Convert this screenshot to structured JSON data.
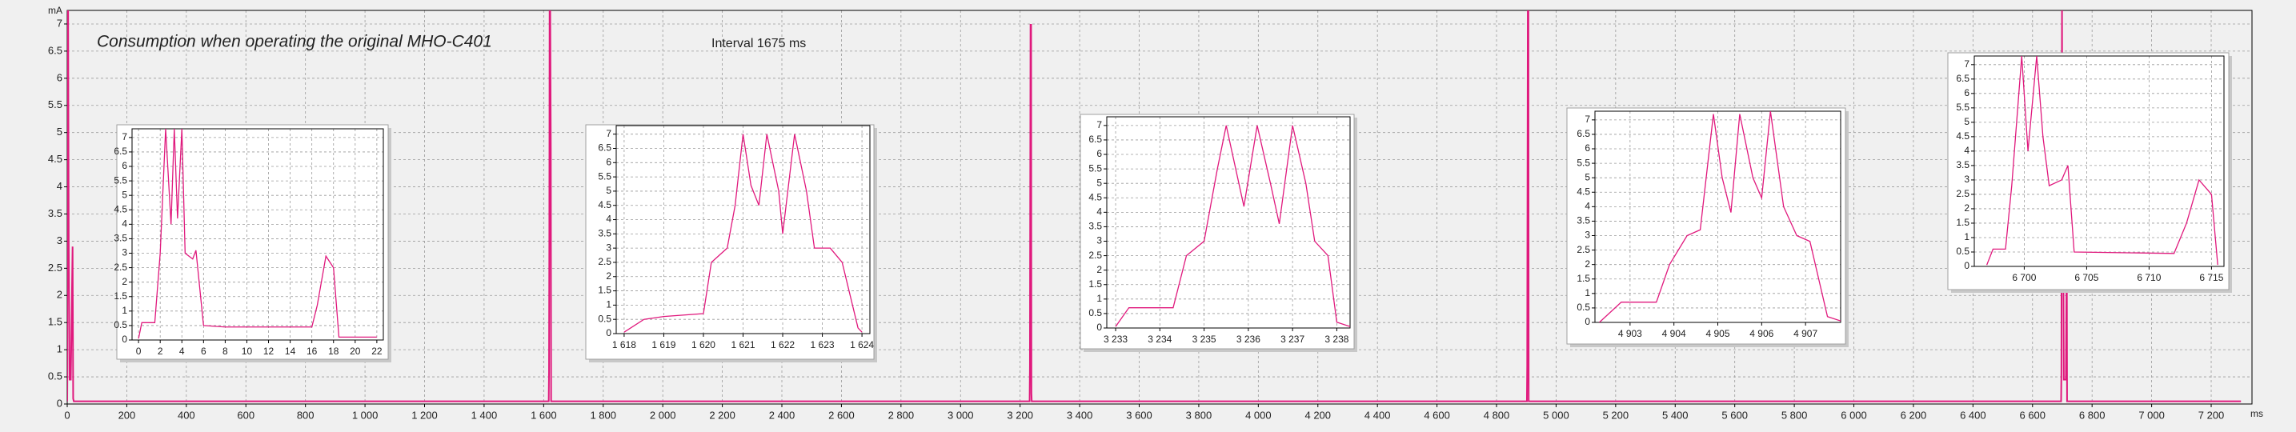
{
  "chart_data": [
    {
      "type": "line",
      "title": "Consumption when operating the original MHO-C401",
      "annotation": "Interval 1675 ms",
      "y_label": "mA",
      "x_label": "ms",
      "grid": true,
      "xlim": [
        0,
        7337
      ],
      "ylim": [
        0,
        7.25
      ],
      "xticks": [
        0,
        200,
        400,
        600,
        800,
        {
          "value": 1000,
          "label": "1 000"
        },
        {
          "value": 1200,
          "label": "1 200"
        },
        {
          "value": 1400,
          "label": "1 400"
        },
        {
          "value": 1600,
          "label": "1 600"
        },
        {
          "value": 1800,
          "label": "1 800"
        },
        {
          "value": 2000,
          "label": "2 000"
        },
        {
          "value": 2200,
          "label": "2 200"
        },
        {
          "value": 2400,
          "label": "2 400"
        },
        {
          "value": 2600,
          "label": "2 600"
        },
        {
          "value": 2800,
          "label": "2 800"
        },
        {
          "value": 3000,
          "label": "3 000"
        },
        {
          "value": 3200,
          "label": "3 200"
        },
        {
          "value": 3400,
          "label": "3 400"
        },
        {
          "value": 3600,
          "label": "3 600"
        },
        {
          "value": 3800,
          "label": "3 800"
        },
        {
          "value": 4000,
          "label": "4 000"
        },
        {
          "value": 4200,
          "label": "4 200"
        },
        {
          "value": 4400,
          "label": "4 400"
        },
        {
          "value": 4600,
          "label": "4 600"
        },
        {
          "value": 4800,
          "label": "4 800"
        },
        {
          "value": 5000,
          "label": "5 000"
        },
        {
          "value": 5200,
          "label": "5 200"
        },
        {
          "value": 5400,
          "label": "5 400"
        },
        {
          "value": 5600,
          "label": "5 600"
        },
        {
          "value": 5800,
          "label": "5 800"
        },
        {
          "value": 6000,
          "label": "6 000"
        },
        {
          "value": 6200,
          "label": "6 200"
        },
        {
          "value": 6400,
          "label": "6 400"
        },
        {
          "value": 6600,
          "label": "6 600"
        },
        {
          "value": 6800,
          "label": "6 800"
        },
        {
          "value": 7000,
          "label": "7 000"
        },
        {
          "value": 7200,
          "label": "7 200"
        }
      ],
      "yticks": [
        0,
        0.5,
        1,
        1.5,
        2,
        2.5,
        3,
        3.5,
        4,
        4.5,
        5,
        5.5,
        6,
        6.5,
        7
      ],
      "series": [
        {
          "color": "#e0197d",
          "x": [
            0,
            0.5,
            1,
            2,
            3,
            5,
            8,
            12,
            18,
            20,
            22,
            30,
            1617,
            1618,
            1619,
            1620,
            1622,
            1624,
            1625,
            3232,
            3233,
            3235,
            3236,
            3237,
            3238,
            3239,
            4902,
            4903,
            4905,
            4906,
            4907,
            4908,
            6696,
            6697,
            6699,
            6700,
            6703,
            6705,
            6712,
            6715,
            6716,
            7300
          ],
          "values": [
            0.05,
            0.6,
            7.3,
            4,
            7.3,
            3,
            0.45,
            0.45,
            2.9,
            0.1,
            0.05,
            0.05,
            0.05,
            0.6,
            3,
            7.3,
            7.3,
            4.7,
            0.05,
            0.05,
            0.7,
            7,
            4.2,
            7,
            0.2,
            0.05,
            0.05,
            0.7,
            7.3,
            4.3,
            7.3,
            0.05,
            0.05,
            0.6,
            7.3,
            4,
            3.5,
            0.45,
            0.45,
            3,
            0.05,
            0.05
          ]
        }
      ]
    },
    {
      "type": "line",
      "grid": true,
      "xlim": [
        -0.6,
        22.6
      ],
      "ylim": [
        0,
        7.3
      ],
      "xticks": [
        0,
        2,
        4,
        6,
        8,
        10,
        12,
        14,
        16,
        18,
        20,
        22
      ],
      "yticks": [
        0,
        0.5,
        1,
        1.5,
        2,
        2.5,
        3,
        3.5,
        4,
        4.5,
        5,
        5.5,
        6,
        6.5,
        7
      ],
      "series": [
        {
          "color": "#e0197d",
          "x": [
            0,
            0.3,
            1.5,
            2,
            2.5,
            3,
            3.3,
            3.6,
            4,
            4.3,
            5,
            5.3,
            6,
            8,
            16,
            16.5,
            17.3,
            18,
            18.5,
            22
          ],
          "values": [
            0.05,
            0.6,
            0.6,
            3,
            7.3,
            4,
            7.3,
            4.2,
            7.3,
            3,
            2.8,
            3.1,
            0.5,
            0.45,
            0.45,
            1.2,
            2.9,
            2.5,
            0.1,
            0.1
          ]
        }
      ]
    },
    {
      "type": "line",
      "grid": true,
      "xlim": [
        1617.8,
        1624.2
      ],
      "ylim": [
        0,
        7.3
      ],
      "xticks": [
        {
          "value": 1618,
          "label": "1 618"
        },
        {
          "value": 1619,
          "label": "1 619"
        },
        {
          "value": 1620,
          "label": "1 620"
        },
        {
          "value": 1621,
          "label": "1 621"
        },
        {
          "value": 1622,
          "label": "1 622"
        },
        {
          "value": 1623,
          "label": "1 623"
        },
        {
          "value": 1624,
          "label": "1 624"
        }
      ],
      "yticks": [
        0,
        0.5,
        1,
        1.5,
        2,
        2.5,
        3,
        3.5,
        4,
        4.5,
        5,
        5.5,
        6,
        6.5,
        7
      ],
      "series": [
        {
          "color": "#e0197d",
          "x": [
            1618,
            1618.5,
            1619,
            1620,
            1620.2,
            1620.6,
            1620.8,
            1621,
            1621.2,
            1621.4,
            1621.6,
            1621.9,
            1622,
            1622.3,
            1622.6,
            1622.8,
            1623.2,
            1623.5,
            1623.9,
            1624
          ],
          "values": [
            0.05,
            0.5,
            0.6,
            0.7,
            2.5,
            3,
            4.5,
            7,
            5.2,
            4.5,
            7,
            5,
            3.5,
            7,
            5,
            3,
            3,
            2.5,
            0.2,
            0.05
          ]
        }
      ]
    },
    {
      "type": "line",
      "grid": true,
      "xlim": [
        3232.8,
        3238.3
      ],
      "ylim": [
        0,
        7.3
      ],
      "xticks": [
        {
          "value": 3233,
          "label": "3 233"
        },
        {
          "value": 3234,
          "label": "3 234"
        },
        {
          "value": 3235,
          "label": "3 235"
        },
        {
          "value": 3236,
          "label": "3 236"
        },
        {
          "value": 3237,
          "label": "3 237"
        },
        {
          "value": 3238,
          "label": "3 238"
        }
      ],
      "yticks": [
        0,
        0.5,
        1,
        1.5,
        2,
        2.5,
        3,
        3.5,
        4,
        4.5,
        5,
        5.5,
        6,
        6.5,
        7
      ],
      "series": [
        {
          "color": "#e0197d",
          "x": [
            3233,
            3233.3,
            3234.3,
            3234.6,
            3235,
            3235.3,
            3235.5,
            3235.9,
            3236.2,
            3236.5,
            3236.7,
            3237,
            3237.3,
            3237.5,
            3237.8,
            3238,
            3238.3
          ],
          "values": [
            0.05,
            0.7,
            0.7,
            2.5,
            3,
            5.5,
            7,
            4.2,
            7,
            5,
            3.6,
            7,
            5,
            3,
            2.5,
            0.2,
            0.05
          ]
        }
      ]
    },
    {
      "type": "line",
      "grid": true,
      "xlim": [
        4902.2,
        4907.8
      ],
      "ylim": [
        0,
        7.3
      ],
      "xticks": [
        {
          "value": 4903,
          "label": "4 903"
        },
        {
          "value": 4904,
          "label": "4 904"
        },
        {
          "value": 4905,
          "label": "4 905"
        },
        {
          "value": 4906,
          "label": "4 906"
        },
        {
          "value": 4907,
          "label": "4 907"
        }
      ],
      "yticks": [
        0,
        0.5,
        1,
        1.5,
        2,
        2.5,
        3,
        3.5,
        4,
        4.5,
        5,
        5.5,
        6,
        6.5,
        7
      ],
      "series": [
        {
          "color": "#e0197d",
          "x": [
            4902.3,
            4902.8,
            4903.6,
            4903.9,
            4904.3,
            4904.6,
            4904.9,
            4905.1,
            4905.3,
            4905.5,
            4905.8,
            4906,
            4906.2,
            4906.5,
            4906.8,
            4907.1,
            4907.5,
            4907.8
          ],
          "values": [
            0,
            0.7,
            0.7,
            2,
            3,
            3.2,
            7.2,
            5,
            3.8,
            7.2,
            5,
            4.3,
            7.3,
            4,
            3,
            2.8,
            0.2,
            0.05
          ]
        }
      ]
    },
    {
      "type": "line",
      "grid": true,
      "xlim": [
        6696,
        6716
      ],
      "ylim": [
        0,
        7.3
      ],
      "xticks": [
        {
          "value": 6700,
          "label": "6 700"
        },
        {
          "value": 6705,
          "label": "6 705"
        },
        {
          "value": 6710,
          "label": "6 710"
        },
        {
          "value": 6715,
          "label": "6 715"
        }
      ],
      "yticks": [
        0,
        0.5,
        1,
        1.5,
        2,
        2.5,
        3,
        3.5,
        4,
        4.5,
        5,
        5.5,
        6,
        6.5,
        7
      ],
      "series": [
        {
          "color": "#e0197d",
          "x": [
            6697,
            6697.5,
            6698.5,
            6699,
            6699.8,
            6700.3,
            6701,
            6701.5,
            6702,
            6703,
            6703.5,
            6704,
            6712,
            6713,
            6714,
            6715,
            6715.5
          ],
          "values": [
            0.05,
            0.6,
            0.6,
            2.8,
            7.3,
            4,
            7.3,
            4.5,
            2.8,
            3,
            3.5,
            0.5,
            0.45,
            1.5,
            3,
            2.5,
            0.05
          ]
        }
      ]
    }
  ]
}
